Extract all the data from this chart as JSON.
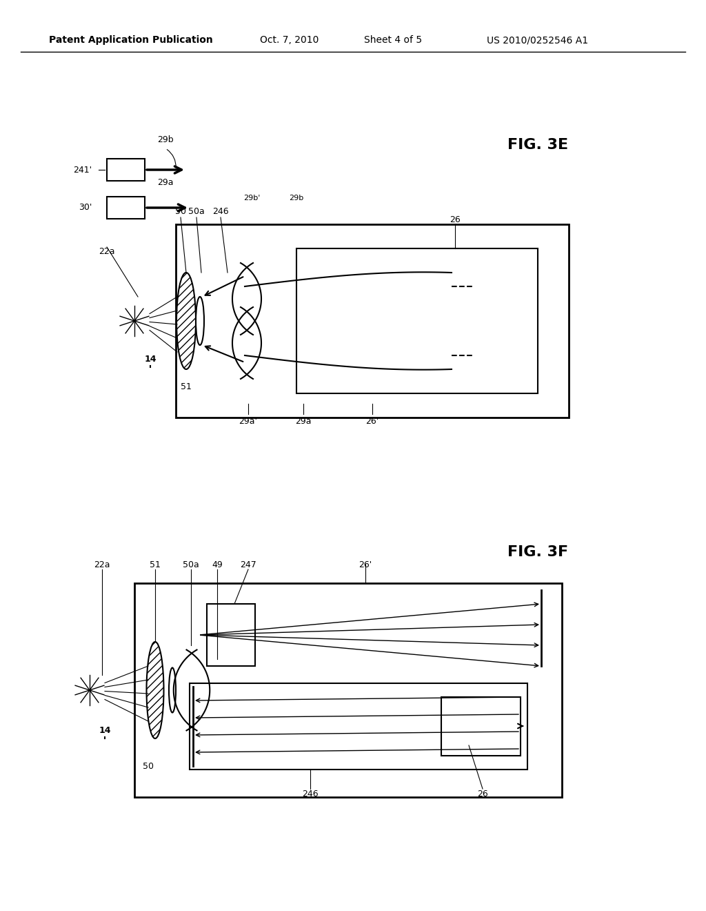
{
  "bg_color": "#ffffff",
  "header_text": "Patent Application Publication",
  "header_date": "Oct. 7, 2010",
  "header_sheet": "Sheet 4 of 5",
  "header_patent": "US 2010/0252546 A1",
  "fig3e_label": "FIG. 3E",
  "fig3f_label": "FIG. 3F",
  "text_color": "#000000"
}
